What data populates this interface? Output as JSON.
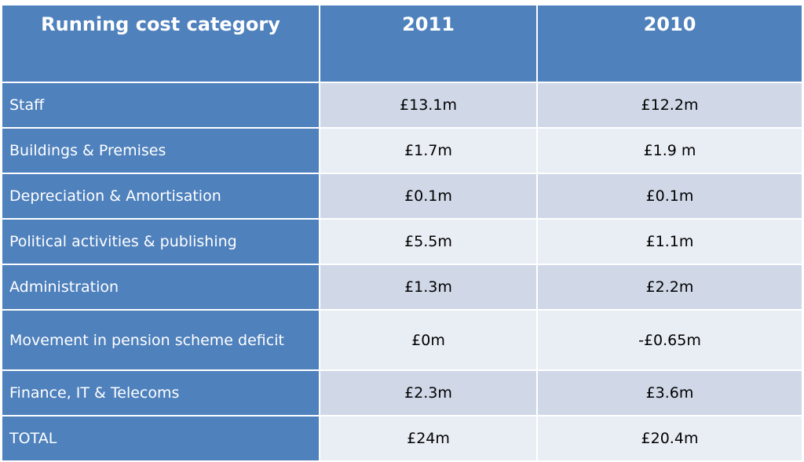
{
  "chart_data": {
    "type": "table",
    "columns": [
      "Running cost category",
      "2011",
      "2010"
    ],
    "rows": [
      {
        "category": "Staff",
        "y2011": "£13.1m",
        "y2010": "£12.2m"
      },
      {
        "category": "Buildings & Premises",
        "y2011": "£1.7m",
        "y2010": " £1.9 m"
      },
      {
        "category": "Depreciation & Amortisation",
        "y2011": "£0.1m",
        "y2010": "£0.1m"
      },
      {
        "category": "Political activities & publishing",
        "y2011": "£5.5m",
        "y2010": "£1.1m"
      },
      {
        "category": "Administration",
        "y2011": "£1.3m",
        "y2010": "£2.2m"
      },
      {
        "category": "Movement in pension scheme deficit",
        "y2011": "£0m",
        "y2010": "-£0.65m"
      },
      {
        "category": "Finance, IT & Telecoms",
        "y2011": "£2.3m",
        "y2010": "£3.6m"
      },
      {
        "category": "TOTAL",
        "y2011": "£24m",
        "y2010": "£20.4m"
      }
    ],
    "header_color": "#4f81bd",
    "band_colors": [
      "#d0d8e8",
      "#e9edf4"
    ]
  }
}
